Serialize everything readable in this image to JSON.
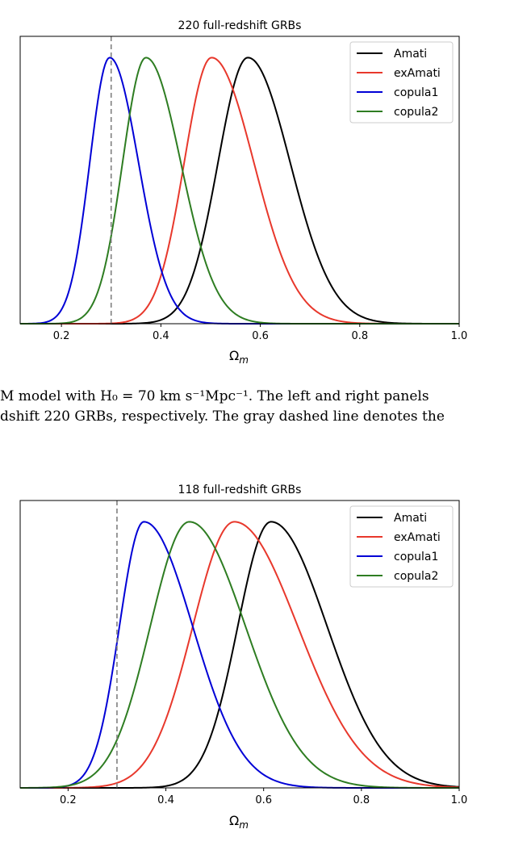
{
  "caption": {
    "line1": "M model with H₀ = 70 km s⁻¹Mpc⁻¹.  The left and right panels",
    "line2": "dshift 220 GRBs, respectively.  The gray dashed line denotes the"
  },
  "chart_data": [
    {
      "type": "line",
      "title": "220 full-redshift GRBs",
      "xlabel": "Ωm",
      "ylabel": "",
      "xlim": [
        0.117,
        1.0
      ],
      "ylim": [
        0,
        1.08
      ],
      "xticks": [
        "0.2",
        "0.4",
        "0.6",
        "0.8",
        "1.0"
      ],
      "xtick_values": [
        0.2,
        0.4,
        0.6,
        0.8,
        1.0
      ],
      "reference_line": {
        "x": 0.3,
        "style": "dashed",
        "color": "#808080"
      },
      "legend_position": "top-right",
      "grid": false,
      "series": [
        {
          "name": "Amati",
          "color": "#000000",
          "peak": 0.575,
          "sigma_left": 0.06,
          "sigma_right": 0.085
        },
        {
          "name": "exAmati",
          "color": "#e8382c",
          "peak": 0.502,
          "sigma_left": 0.055,
          "sigma_right": 0.085
        },
        {
          "name": "copula1",
          "color": "#0000d6",
          "peak": 0.297,
          "sigma_left": 0.04,
          "sigma_right": 0.058
        },
        {
          "name": "copula2",
          "color": "#2e7d22",
          "peak": 0.37,
          "sigma_left": 0.047,
          "sigma_right": 0.07
        }
      ]
    },
    {
      "type": "line",
      "title": "118 full-redshift GRBs",
      "xlabel": "Ωm",
      "ylabel": "",
      "xlim": [
        0.102,
        1.0
      ],
      "ylim": [
        0,
        1.08
      ],
      "xticks": [
        "0.2",
        "0.4",
        "0.6",
        "0.8",
        "1.0"
      ],
      "xtick_values": [
        0.2,
        0.4,
        0.6,
        0.8,
        1.0
      ],
      "reference_line": {
        "x": 0.3,
        "style": "dashed",
        "color": "#808080"
      },
      "legend_position": "top-right",
      "grid": false,
      "series": [
        {
          "name": "Amati",
          "color": "#000000",
          "peak": 0.615,
          "sigma_left": 0.068,
          "sigma_right": 0.115
        },
        {
          "name": "exAmati",
          "color": "#e8382c",
          "peak": 0.54,
          "sigma_left": 0.085,
          "sigma_right": 0.13
        },
        {
          "name": "copula1",
          "color": "#0000d6",
          "peak": 0.355,
          "sigma_left": 0.05,
          "sigma_right": 0.1
        },
        {
          "name": "copula2",
          "color": "#2e7d22",
          "peak": 0.448,
          "sigma_left": 0.08,
          "sigma_right": 0.115
        }
      ]
    }
  ]
}
